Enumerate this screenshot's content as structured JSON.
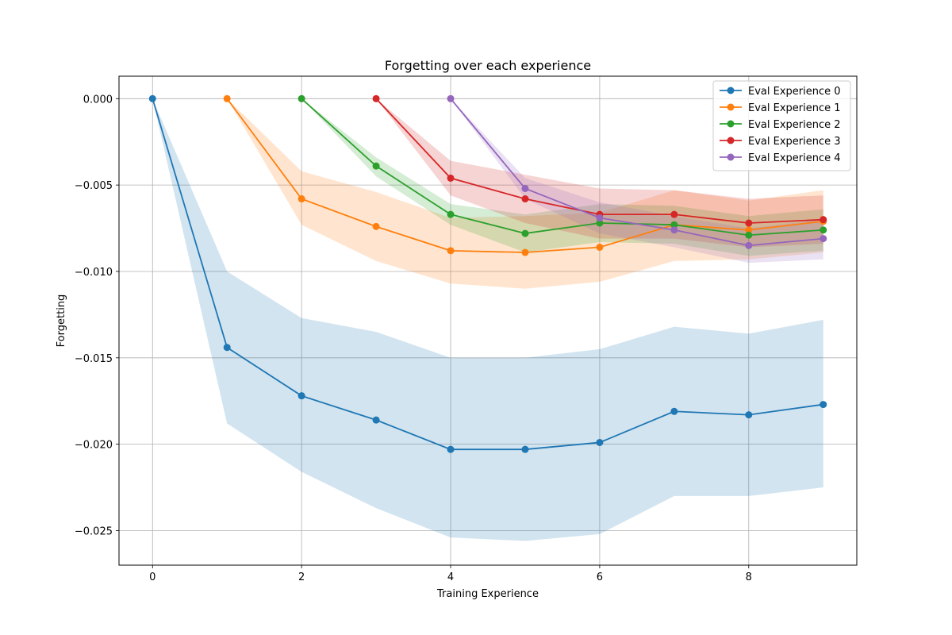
{
  "chart_data": {
    "type": "line",
    "title": "Forgetting over each experience",
    "xlabel": "Training Experience",
    "ylabel": "Forgetting",
    "xlim": [
      -0.45,
      9.45
    ],
    "ylim": [
      -0.027,
      0.0013
    ],
    "xticks": [
      0,
      2,
      4,
      6,
      8
    ],
    "xtick_labels": [
      "0",
      "2",
      "4",
      "6",
      "8"
    ],
    "yticks": [
      0.0,
      -0.005,
      -0.01,
      -0.015,
      -0.02,
      -0.025
    ],
    "ytick_labels": [
      "0.000",
      "−0.005",
      "−0.010",
      "−0.015",
      "−0.020",
      "−0.025"
    ],
    "grid": true,
    "legend_position": "upper right",
    "series": [
      {
        "name": "Eval Experience 0",
        "color": "#1f77b4",
        "x": [
          0,
          1,
          2,
          3,
          4,
          5,
          6,
          7,
          8,
          9
        ],
        "y": [
          0.0,
          -0.0144,
          -0.0172,
          -0.0186,
          -0.0203,
          -0.0203,
          -0.0199,
          -0.0181,
          -0.0183,
          -0.0177
        ],
        "band_upper": [
          0.0,
          -0.01,
          -0.0127,
          -0.0135,
          -0.015,
          -0.015,
          -0.0145,
          -0.0132,
          -0.0136,
          -0.0128
        ],
        "band_lower": [
          0.0,
          -0.0188,
          -0.0216,
          -0.0237,
          -0.0254,
          -0.0256,
          -0.0252,
          -0.023,
          -0.023,
          -0.0225
        ]
      },
      {
        "name": "Eval Experience 1",
        "color": "#ff7f0e",
        "x": [
          1,
          2,
          3,
          4,
          5,
          6,
          7,
          8,
          9
        ],
        "y": [
          0.0,
          -0.0058,
          -0.0074,
          -0.0088,
          -0.0089,
          -0.0086,
          -0.0073,
          -0.0076,
          -0.0071
        ],
        "band_upper": [
          0.0,
          -0.0042,
          -0.0054,
          -0.0069,
          -0.0068,
          -0.0066,
          -0.0053,
          -0.0059,
          -0.0053
        ],
        "band_lower": [
          0.0,
          -0.0073,
          -0.0094,
          -0.0107,
          -0.011,
          -0.0106,
          -0.0094,
          -0.0093,
          -0.0089
        ]
      },
      {
        "name": "Eval Experience 2",
        "color": "#2ca02c",
        "x": [
          2,
          3,
          4,
          5,
          6,
          7,
          8,
          9
        ],
        "y": [
          0.0,
          -0.0039,
          -0.0067,
          -0.0078,
          -0.0072,
          -0.0073,
          -0.0079,
          -0.0076
        ],
        "band_upper": [
          0.0,
          -0.0034,
          -0.0061,
          -0.0067,
          -0.0061,
          -0.0062,
          -0.0068,
          -0.0064
        ],
        "band_lower": [
          0.0,
          -0.0045,
          -0.0073,
          -0.0089,
          -0.0083,
          -0.0084,
          -0.0091,
          -0.0088
        ]
      },
      {
        "name": "Eval Experience 3",
        "color": "#d62728",
        "x": [
          3,
          4,
          5,
          6,
          7,
          8,
          9
        ],
        "y": [
          0.0,
          -0.0046,
          -0.0058,
          -0.0067,
          -0.0067,
          -0.0072,
          -0.007
        ],
        "band_upper": [
          0.0,
          -0.0036,
          -0.0044,
          -0.0052,
          -0.0053,
          -0.0058,
          -0.0056
        ],
        "band_lower": [
          0.0,
          -0.0056,
          -0.0072,
          -0.0081,
          -0.0081,
          -0.0086,
          -0.0084
        ]
      },
      {
        "name": "Eval Experience 4",
        "color": "#9467bd",
        "x": [
          4,
          5,
          6,
          7,
          8,
          9
        ],
        "y": [
          0.0,
          -0.0052,
          -0.0069,
          -0.0076,
          -0.0085,
          -0.0081
        ],
        "band_upper": [
          0.0,
          -0.0046,
          -0.006,
          -0.0068,
          -0.0075,
          -0.007
        ],
        "band_lower": [
          0.0,
          -0.0058,
          -0.0078,
          -0.0086,
          -0.0095,
          -0.0093
        ]
      }
    ]
  }
}
